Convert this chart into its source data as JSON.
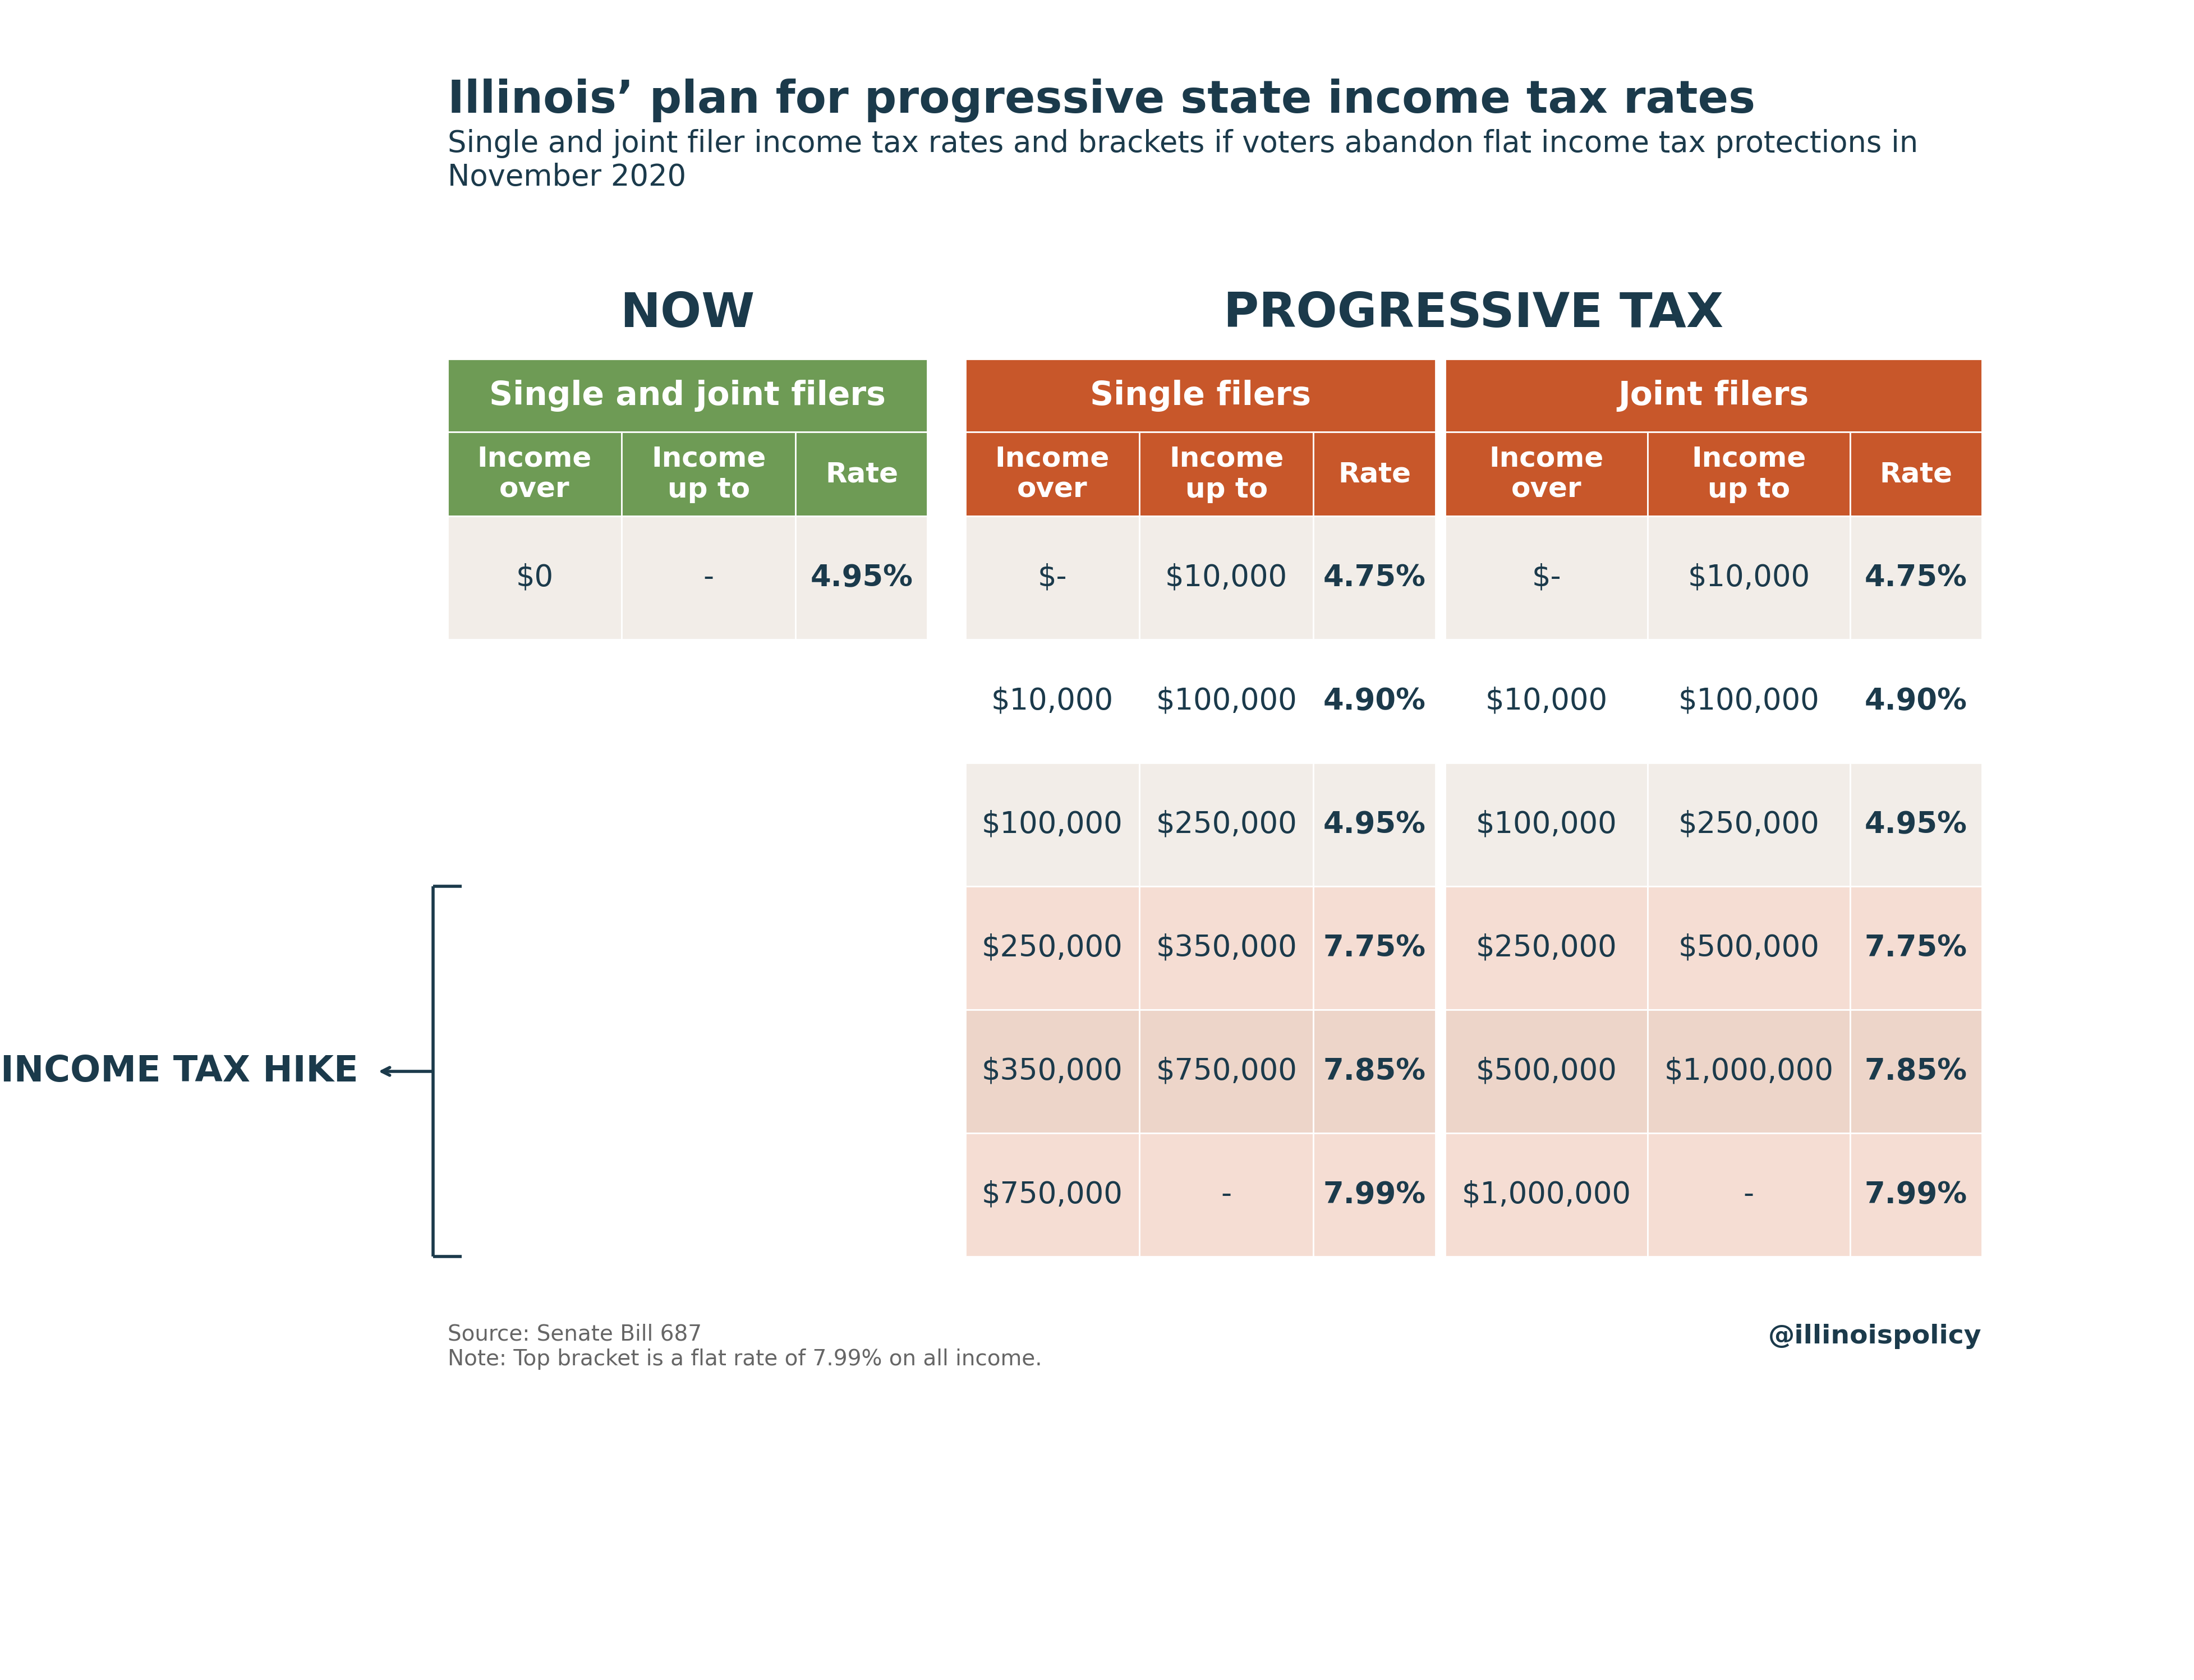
{
  "title": "Illinois’ plan for progressive state income tax rates",
  "subtitle": "Single and joint filer income tax rates and brackets if voters abandon flat income tax protections in\nNovember 2020",
  "bg_color": "#ffffff",
  "text_color_dark": "#1b3a4b",
  "now_label": "NOW",
  "prog_label": "PROGRESSIVE TAX",
  "green_header": "#6e9b55",
  "orange_header": "#c8572a",
  "row_bg_light": "#f2ede8",
  "row_bg_mid": "#e8e3de",
  "row_bg_orange_light1": "#f5ddd3",
  "row_bg_orange_light2": "#edd5c9",
  "row_bg_white": "#ffffff",
  "now_col_header": "Single and joint filers",
  "single_col_header": "Single filers",
  "joint_col_header": "Joint filers",
  "col_subheaders": [
    "Income\nover",
    "Income\nup to",
    "Rate"
  ],
  "now_data": [
    [
      "$0",
      "-",
      "4.95%"
    ]
  ],
  "single_data": [
    [
      "$-",
      "$10,000",
      "4.75%"
    ],
    [
      "$10,000",
      "$100,000",
      "4.90%"
    ],
    [
      "$100,000",
      "$250,000",
      "4.95%"
    ],
    [
      "$250,000",
      "$350,000",
      "7.75%"
    ],
    [
      "$350,000",
      "$750,000",
      "7.85%"
    ],
    [
      "$750,000",
      "-",
      "7.99%"
    ]
  ],
  "joint_data": [
    [
      "$-",
      "$10,000",
      "4.75%"
    ],
    [
      "$10,000",
      "$100,000",
      "4.90%"
    ],
    [
      "$100,000",
      "$250,000",
      "4.95%"
    ],
    [
      "$250,000",
      "$500,000",
      "7.75%"
    ],
    [
      "$500,000",
      "$1,000,000",
      "7.85%"
    ],
    [
      "$1,000,000",
      "-",
      "7.99%"
    ]
  ],
  "income_tax_hike_label": "INCOME TAX HIKE",
  "source_text": "Source: Senate Bill 687\nNote: Top bracket is a flat rate of 7.99% on all income.",
  "watermark": "@illinoispolicy"
}
